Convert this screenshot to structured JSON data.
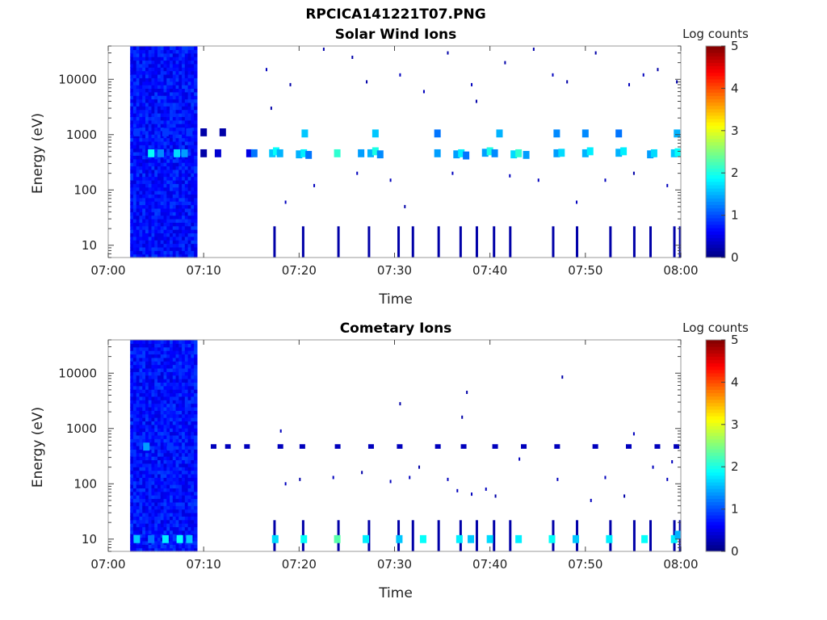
{
  "figure": {
    "title": "RPCICA141221T07.PNG"
  },
  "colorbar": {
    "label": "Log counts",
    "ticks": [
      "0",
      "1",
      "2",
      "3",
      "4",
      "5"
    ],
    "range": [
      0,
      5
    ],
    "colormap": "jet"
  },
  "chart_data": [
    {
      "type": "heatmap",
      "title": "Solar Wind Ions",
      "xlabel": "Time",
      "ylabel": "Energy (eV)",
      "x_tick_labels": [
        "07:00",
        "07:10",
        "07:20",
        "07:30",
        "07:40",
        "07:50",
        "08:00"
      ],
      "y_tick_labels": [
        "10",
        "100",
        "1000",
        "10000"
      ],
      "y_scale": "log",
      "xlim_minutes": [
        0,
        60
      ],
      "ylim_eV": [
        6,
        40000
      ],
      "dense_block": {
        "t_start_min": 2.3,
        "t_end_min": 9.3,
        "base_log_counts": 0.45
      },
      "cells": [
        [
          4.5,
          460,
          1.9
        ],
        [
          5.5,
          460,
          1.3
        ],
        [
          7.2,
          460,
          1.7
        ],
        [
          8.0,
          460,
          1.4
        ],
        [
          3.0,
          1100,
          0.9
        ],
        [
          6.0,
          1100,
          0.9
        ],
        [
          8.5,
          1100,
          0.9
        ],
        [
          10.0,
          1100,
          0.2
        ],
        [
          10.0,
          460,
          0.2
        ],
        [
          11.5,
          460,
          0.4
        ],
        [
          12.0,
          1100,
          0.2
        ],
        [
          14.8,
          460,
          0.5
        ],
        [
          15.3,
          460,
          1.2
        ],
        [
          17.2,
          460,
          1.6
        ],
        [
          17.6,
          500,
          1.9
        ],
        [
          18.0,
          460,
          1.5
        ],
        [
          20.0,
          440,
          1.5
        ],
        [
          20.5,
          460,
          1.8
        ],
        [
          21.0,
          430,
          1.2
        ],
        [
          20.6,
          1050,
          1.6
        ],
        [
          24.0,
          460,
          2.1
        ],
        [
          26.5,
          460,
          1.4
        ],
        [
          27.5,
          460,
          1.5
        ],
        [
          28.0,
          500,
          2.0
        ],
        [
          28.5,
          440,
          1.3
        ],
        [
          28.0,
          1050,
          1.6
        ],
        [
          34.5,
          460,
          1.4
        ],
        [
          34.5,
          1050,
          1.2
        ],
        [
          36.5,
          440,
          1.4
        ],
        [
          37.0,
          460,
          1.8
        ],
        [
          37.5,
          420,
          1.2
        ],
        [
          39.5,
          470,
          1.4
        ],
        [
          40.0,
          500,
          2.0
        ],
        [
          40.5,
          460,
          1.3
        ],
        [
          41.0,
          1050,
          1.5
        ],
        [
          42.5,
          440,
          1.7
        ],
        [
          43.0,
          460,
          2.1
        ],
        [
          43.8,
          430,
          1.4
        ],
        [
          47.0,
          460,
          1.4
        ],
        [
          47.5,
          470,
          1.7
        ],
        [
          47.0,
          1050,
          1.3
        ],
        [
          50.0,
          460,
          1.5
        ],
        [
          50.5,
          500,
          1.8
        ],
        [
          50.0,
          1050,
          1.3
        ],
        [
          53.5,
          470,
          1.5
        ],
        [
          54.0,
          500,
          1.8
        ],
        [
          53.5,
          1050,
          1.2
        ],
        [
          56.8,
          440,
          1.4
        ],
        [
          57.2,
          460,
          1.7
        ],
        [
          59.3,
          460,
          1.6
        ],
        [
          59.7,
          480,
          1.9
        ],
        [
          59.6,
          1050,
          1.5
        ]
      ],
      "low_energy_streaks_min": [
        17.3,
        20.3,
        24.0,
        27.2,
        30.3,
        31.8,
        34.5,
        36.8,
        38.5,
        40.3,
        42.0,
        46.5,
        49.0,
        52.5,
        55.0,
        56.7,
        59.2,
        59.8
      ],
      "sparse_points": [
        [
          16.5,
          15000,
          0.3
        ],
        [
          17.0,
          3000,
          0.2
        ],
        [
          18.5,
          60,
          0.3
        ],
        [
          19.0,
          8000,
          0.2
        ],
        [
          21.5,
          120,
          0.3
        ],
        [
          22.5,
          35000,
          0.2
        ],
        [
          25.5,
          25000,
          0.2
        ],
        [
          26.0,
          200,
          0.3
        ],
        [
          27.0,
          9000,
          0.2
        ],
        [
          29.5,
          150,
          0.3
        ],
        [
          30.5,
          12000,
          0.3
        ],
        [
          31.0,
          50,
          0.2
        ],
        [
          33.0,
          6000,
          0.3
        ],
        [
          35.5,
          30000,
          0.2
        ],
        [
          36.0,
          200,
          0.3
        ],
        [
          38.0,
          8000,
          0.3
        ],
        [
          38.5,
          4000,
          0.2
        ],
        [
          41.5,
          20000,
          0.2
        ],
        [
          42.0,
          180,
          0.3
        ],
        [
          44.5,
          35000,
          0.2
        ],
        [
          45.0,
          150,
          0.3
        ],
        [
          46.5,
          12000,
          0.3
        ],
        [
          48.0,
          9000,
          0.2
        ],
        [
          49.0,
          60,
          0.3
        ],
        [
          51.0,
          30000,
          0.2
        ],
        [
          52.0,
          150,
          0.3
        ],
        [
          54.5,
          8000,
          0.3
        ],
        [
          55.0,
          200,
          0.2
        ],
        [
          56.0,
          12000,
          0.3
        ],
        [
          57.5,
          15000,
          0.2
        ],
        [
          58.5,
          120,
          0.3
        ],
        [
          59.5,
          9000,
          0.2
        ]
      ]
    },
    {
      "type": "heatmap",
      "title": "Cometary Ions",
      "xlabel": "Time",
      "ylabel": "Energy (eV)",
      "x_tick_labels": [
        "07:00",
        "07:10",
        "07:20",
        "07:30",
        "07:40",
        "07:50",
        "08:00"
      ],
      "y_tick_labels": [
        "10",
        "100",
        "1000",
        "10000"
      ],
      "y_scale": "log",
      "xlim_minutes": [
        0,
        60
      ],
      "ylim_eV": [
        6,
        40000
      ],
      "dense_block": {
        "t_start_min": 2.3,
        "t_end_min": 9.3,
        "base_log_counts": 0.45
      },
      "cells": [
        [
          3.0,
          10,
          1.6
        ],
        [
          4.5,
          10,
          1.2
        ],
        [
          6.0,
          10,
          1.8
        ],
        [
          7.5,
          10,
          1.9
        ],
        [
          8.5,
          10,
          1.6
        ],
        [
          4.0,
          470,
          1.4
        ],
        [
          6.5,
          470,
          0.9
        ],
        [
          17.5,
          10,
          1.7
        ],
        [
          20.5,
          10,
          1.9
        ],
        [
          24.0,
          10,
          2.3
        ],
        [
          27.0,
          10,
          1.8
        ],
        [
          30.5,
          10,
          1.6
        ],
        [
          33.0,
          10,
          1.9
        ],
        [
          36.8,
          10,
          1.8
        ],
        [
          38.0,
          10,
          1.6
        ],
        [
          40.0,
          10,
          1.7
        ],
        [
          43.0,
          10,
          1.8
        ],
        [
          46.5,
          10,
          1.9
        ],
        [
          49.0,
          10,
          1.6
        ],
        [
          52.5,
          10,
          1.8
        ],
        [
          56.2,
          10,
          1.9
        ],
        [
          59.3,
          10,
          1.8
        ],
        [
          59.7,
          12,
          1.5
        ]
      ],
      "low_energy_streaks_min": [
        17.3,
        20.3,
        24.0,
        27.2,
        30.3,
        31.8,
        34.5,
        36.8,
        38.5,
        40.3,
        42.0,
        46.5,
        49.0,
        52.5,
        55.0,
        56.7,
        59.2,
        59.8
      ],
      "ion_track_min": [
        11.0,
        12.5,
        14.5,
        18.0,
        20.3,
        24.0,
        27.5,
        30.5,
        34.5,
        37.2,
        40.5,
        43.5,
        47.0,
        51.0,
        54.5,
        57.5,
        59.5
      ],
      "sparse_points": [
        [
          18.0,
          900,
          0.3
        ],
        [
          18.5,
          100,
          0.3
        ],
        [
          20.0,
          120,
          0.2
        ],
        [
          23.5,
          130,
          0.3
        ],
        [
          26.5,
          160,
          0.2
        ],
        [
          29.5,
          110,
          0.3
        ],
        [
          30.5,
          2800,
          0.2
        ],
        [
          31.5,
          130,
          0.3
        ],
        [
          32.5,
          200,
          0.2
        ],
        [
          35.5,
          120,
          0.3
        ],
        [
          36.5,
          75,
          0.3
        ],
        [
          37.0,
          1600,
          0.2
        ],
        [
          37.5,
          4500,
          0.2
        ],
        [
          38.0,
          65,
          0.3
        ],
        [
          39.5,
          80,
          0.3
        ],
        [
          40.5,
          60,
          0.2
        ],
        [
          43.0,
          280,
          0.3
        ],
        [
          47.0,
          120,
          0.3
        ],
        [
          47.5,
          8500,
          0.2
        ],
        [
          50.5,
          50,
          0.3
        ],
        [
          52.0,
          130,
          0.3
        ],
        [
          54.0,
          60,
          0.2
        ],
        [
          55.0,
          800,
          0.3
        ],
        [
          57.0,
          200,
          0.3
        ],
        [
          58.5,
          120,
          0.3
        ],
        [
          59.0,
          250,
          0.3
        ]
      ]
    }
  ]
}
